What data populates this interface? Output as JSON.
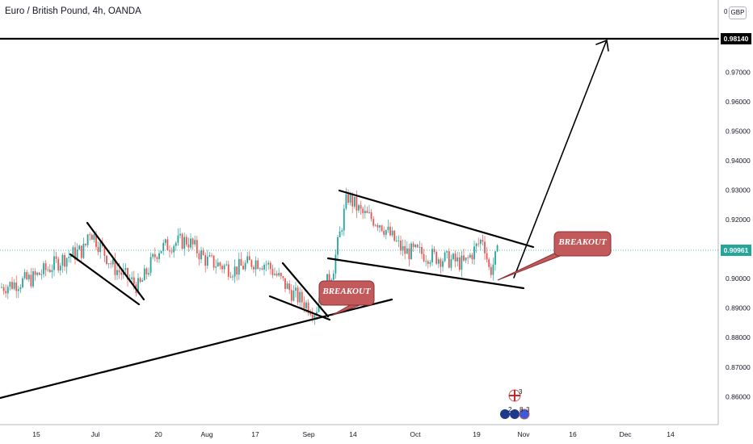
{
  "header": {
    "title": "Euro / British Pound, 4h, OANDA",
    "currency": "GBP",
    "corner_value": "0"
  },
  "colors": {
    "up": "#26a69a",
    "down": "#ef5350",
    "axis": "#b2b5be",
    "price_line": "#26a69a",
    "callout_fill": "#c2595b",
    "callout_stroke": "#8b2f31",
    "drawing": "#000000"
  },
  "annotations": {
    "breakout_1": "BREAKOUT",
    "breakout_2": "BREAKOUT",
    "target_price": "0.98140",
    "current_price": "0.90961"
  },
  "events": {
    "top_count": "3",
    "bottom_count_a": "2",
    "bottom_count_b": "8",
    "bottom_count_c": "3",
    "flag_icon": "uk-flag-icon",
    "eu_icon": "eu-flag-icon"
  },
  "chart_data": {
    "type": "candlestick",
    "title": "Euro / British Pound, 4h, OANDA",
    "xlabel": "",
    "ylabel": "",
    "ylim": [
      0.85,
      0.987
    ],
    "y_ticks": [
      "0.86000",
      "0.87000",
      "0.88000",
      "0.89000",
      "0.90000",
      "0.91000",
      "0.92000",
      "0.93000",
      "0.94000",
      "0.95000",
      "0.96000",
      "0.97000"
    ],
    "x_ticks": [
      "15",
      "Jul",
      "20",
      "Aug",
      "17",
      "Sep",
      "14",
      "Oct",
      "19",
      "Nov",
      "16",
      "Dec",
      "14"
    ],
    "grid": false,
    "current_price": 0.90961,
    "target_price": 0.9814,
    "price_path": [
      [
        "15 Jun",
        0.897
      ],
      [
        "22 Jun",
        0.9
      ],
      [
        "29 Jun",
        0.907
      ],
      [
        "Jul",
        0.91
      ],
      [
        "3 Jul",
        0.917
      ],
      [
        "10 Jul",
        0.904
      ],
      [
        "17 Jul",
        0.897
      ],
      [
        "20 Jul",
        0.91
      ],
      [
        "24 Jul",
        0.912
      ],
      [
        "31 Jul",
        0.913
      ],
      [
        "Aug",
        0.906
      ],
      [
        "10 Aug",
        0.903
      ],
      [
        "17 Aug",
        0.906
      ],
      [
        "21 Aug",
        0.905
      ],
      [
        "28 Aug",
        0.895
      ],
      [
        "Sep",
        0.889
      ],
      [
        "7 Sep",
        0.903
      ],
      [
        "11 Sep",
        0.928
      ],
      [
        "14 Sep",
        0.922
      ],
      [
        "21 Sep",
        0.919
      ],
      [
        "28 Sep",
        0.909
      ],
      [
        "Oct",
        0.909
      ],
      [
        "12 Oct",
        0.907
      ],
      [
        "19 Oct",
        0.905
      ],
      [
        "23 Oct",
        0.914
      ],
      [
        "26 Oct",
        0.902
      ],
      [
        "28 Oct",
        0.91
      ]
    ]
  }
}
